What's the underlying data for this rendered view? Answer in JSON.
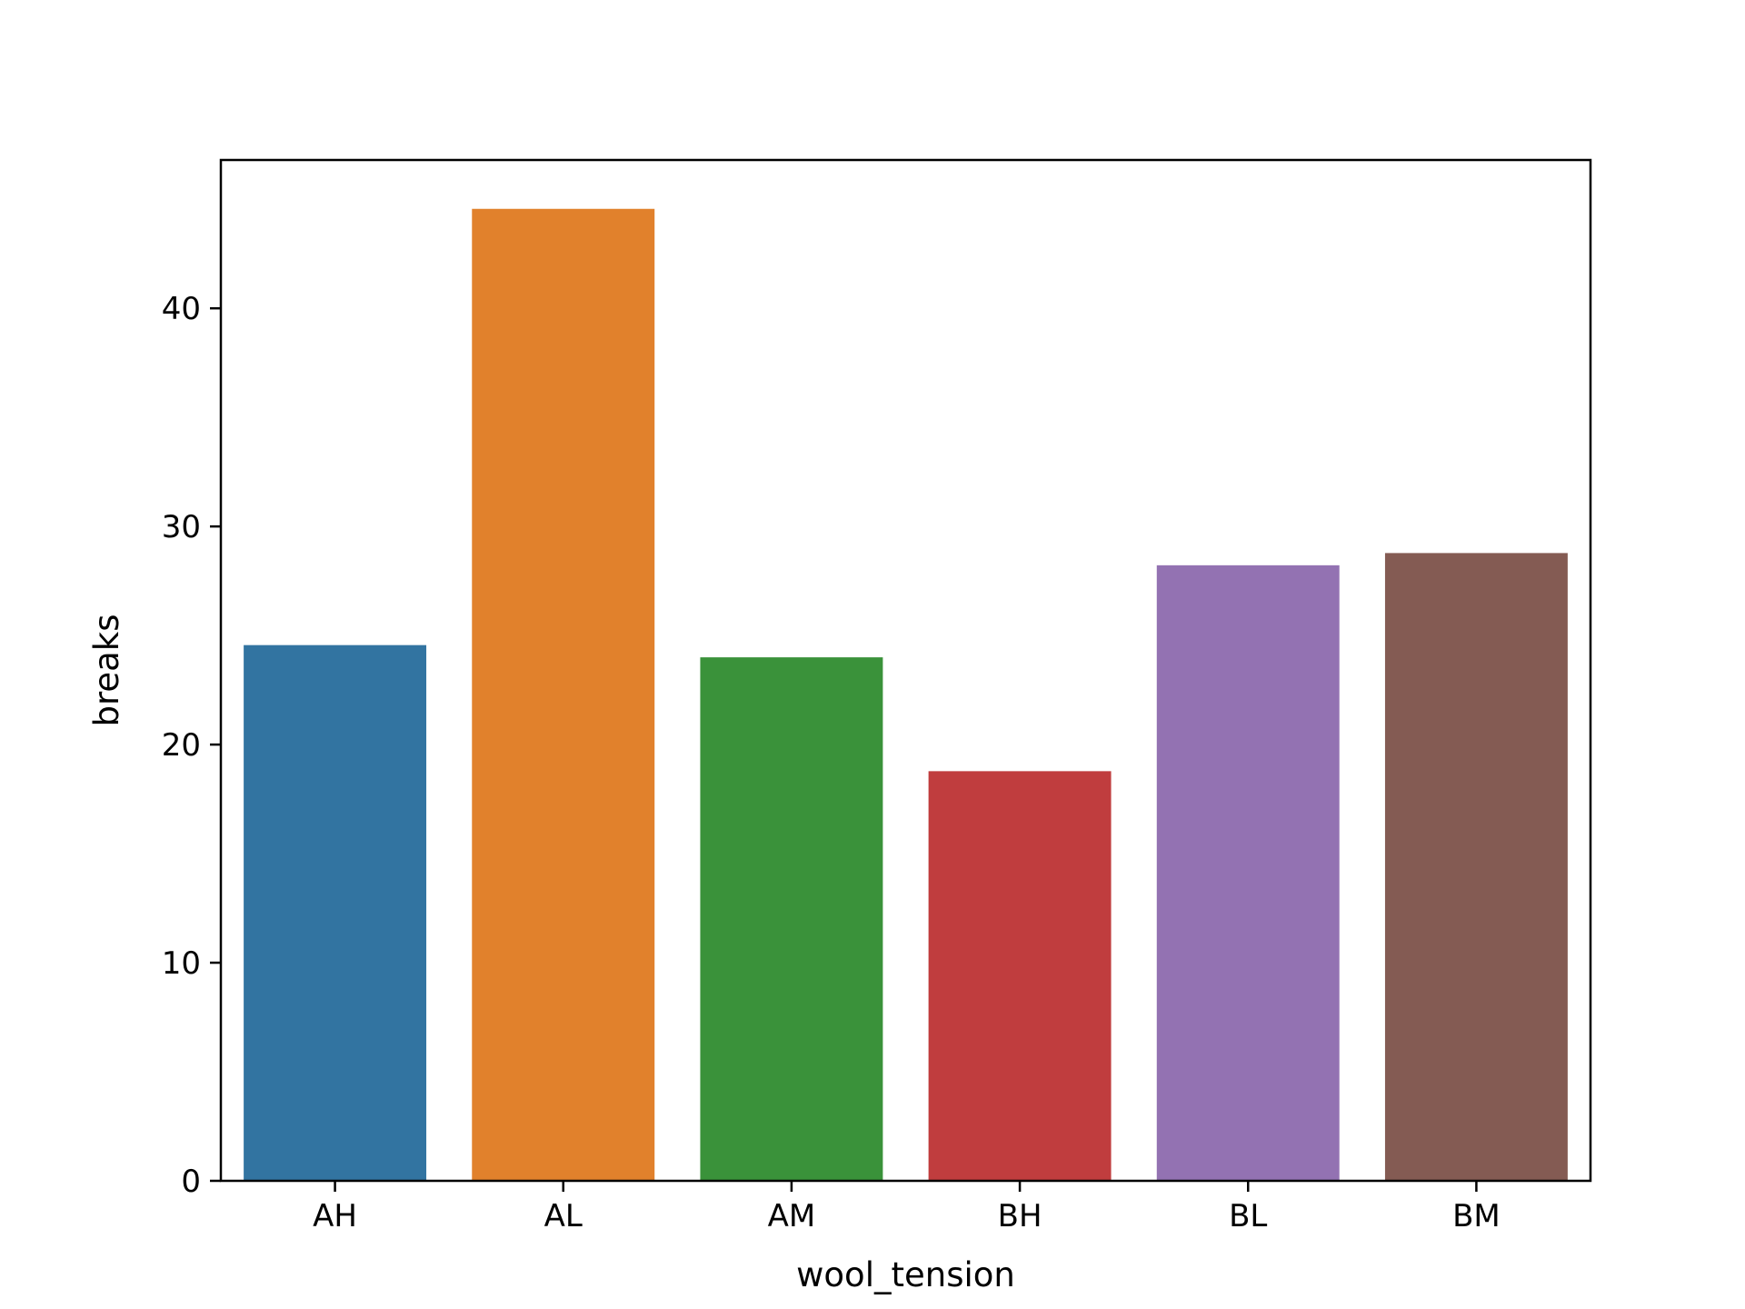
{
  "chart_data": {
    "type": "bar",
    "title": "",
    "xlabel": "wool_tension",
    "ylabel": "breaks",
    "categories": [
      "AH",
      "AL",
      "AM",
      "BH",
      "BL",
      "BM"
    ],
    "values": [
      24.56,
      44.56,
      24.0,
      18.78,
      28.22,
      28.78
    ],
    "colors": [
      "#3274a1",
      "#e1812c",
      "#3a923a",
      "#c03d3e",
      "#9372b2",
      "#845b53"
    ],
    "ylim": [
      0,
      46.8
    ],
    "yticks": [
      0,
      10,
      20,
      30,
      40
    ],
    "grid": false,
    "legend": null
  }
}
